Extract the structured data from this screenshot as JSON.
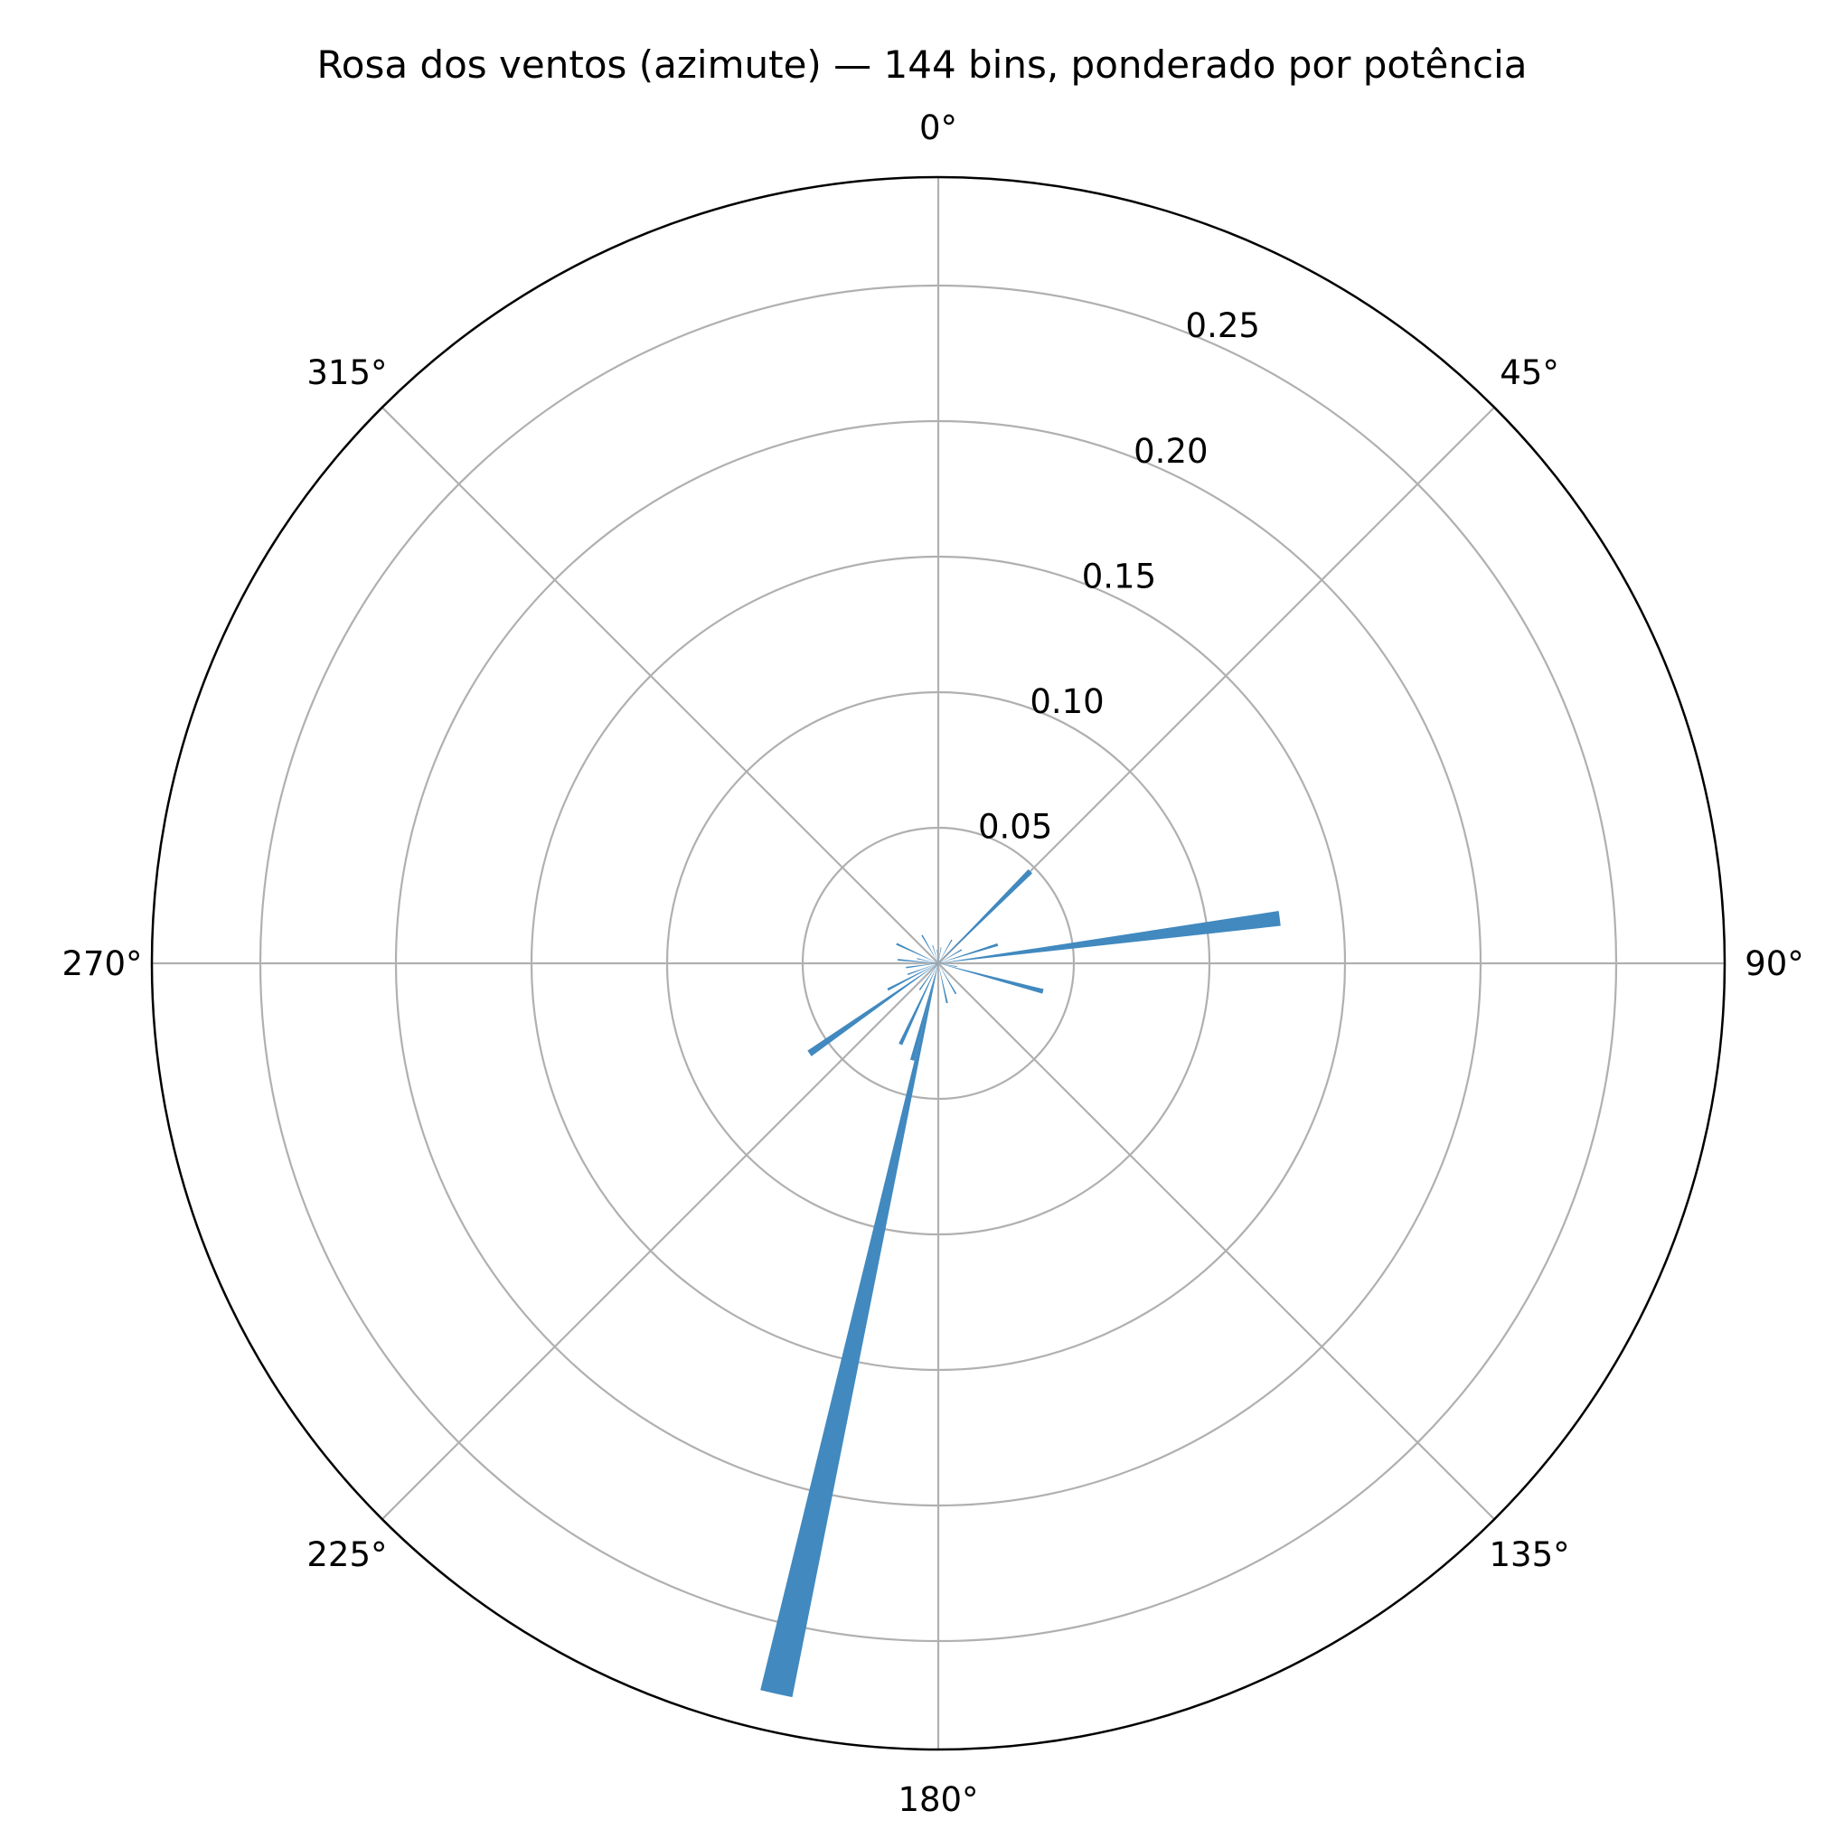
{
  "chart_data": {
    "type": "bar",
    "polar": true,
    "title": "Rosa dos ventos (azimute) — 144 bins, ponderado por potência",
    "theta_zero_location": "N",
    "theta_direction": "clockwise",
    "bin_count": 144,
    "bin_width_deg": 2.5,
    "theta_ticks": [
      "0°",
      "45°",
      "90°",
      "135°",
      "180°",
      "225°",
      "270°",
      "315°"
    ],
    "theta_tick_values_deg": [
      0,
      45,
      90,
      135,
      180,
      225,
      270,
      315
    ],
    "r_ticks": [
      "0.05",
      "0.10",
      "0.15",
      "0.20",
      "0.25"
    ],
    "r_tick_values": [
      0.05,
      0.1,
      0.15,
      0.2,
      0.25
    ],
    "r_tick_label_angle_deg": 22.5,
    "rlim": [
      0,
      0.29
    ],
    "grid": true,
    "bar_color": "#4189bf",
    "bars": [
      {
        "theta_deg": 10.0,
        "value": 0.006
      },
      {
        "theta_deg": 30.0,
        "value": 0.01
      },
      {
        "theta_deg": 45.0,
        "value": 0.048
      },
      {
        "theta_deg": 60.0,
        "value": 0.01
      },
      {
        "theta_deg": 72.5,
        "value": 0.023
      },
      {
        "theta_deg": 82.5,
        "value": 0.127
      },
      {
        "theta_deg": 100.0,
        "value": 0.007
      },
      {
        "theta_deg": 105.0,
        "value": 0.04
      },
      {
        "theta_deg": 150.0,
        "value": 0.013
      },
      {
        "theta_deg": 167.5,
        "value": 0.015
      },
      {
        "theta_deg": 192.5,
        "value": 0.276
      },
      {
        "theta_deg": 195.0,
        "value": 0.037
      },
      {
        "theta_deg": 205.0,
        "value": 0.033
      },
      {
        "theta_deg": 215.0,
        "value": 0.012
      },
      {
        "theta_deg": 235.0,
        "value": 0.058
      },
      {
        "theta_deg": 242.5,
        "value": 0.021
      },
      {
        "theta_deg": 250.0,
        "value": 0.012
      },
      {
        "theta_deg": 262.5,
        "value": 0.012
      },
      {
        "theta_deg": 275.0,
        "value": 0.015
      },
      {
        "theta_deg": 282.5,
        "value": 0.008
      },
      {
        "theta_deg": 295.0,
        "value": 0.017
      },
      {
        "theta_deg": 330.0,
        "value": 0.012
      },
      {
        "theta_deg": 342.5,
        "value": 0.007
      },
      {
        "theta_deg": 355.0,
        "value": 0.005
      }
    ]
  }
}
